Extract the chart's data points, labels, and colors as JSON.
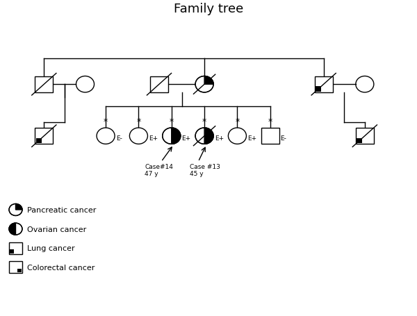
{
  "title": "Family tree",
  "title_fontsize": 13,
  "background_color": "#ffffff",
  "lw": 1.0,
  "r": 0.22,
  "sq": 0.22,
  "legend": [
    {
      "type": "pancreatic",
      "label": "Pancreatic cancer"
    },
    {
      "type": "ovarian",
      "label": "Ovarian cancer"
    },
    {
      "type": "lung",
      "label": "Lung cancer"
    },
    {
      "type": "colorectal",
      "label": "Colorectal cancer"
    }
  ]
}
